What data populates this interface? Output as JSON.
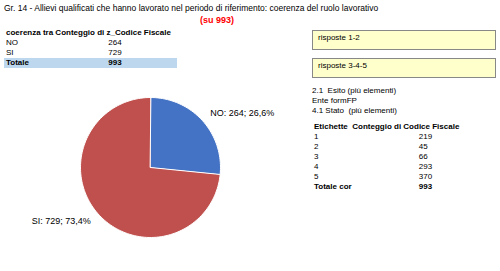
{
  "chart_data": {
    "type": "pie",
    "title": "Gr. 14 - Allievi qualificati che hanno lavorato nel periodo di riferimento: coerenza del ruolo lavorativo",
    "subtitle": "(su 993)",
    "categories": [
      "NO",
      "SI"
    ],
    "values": [
      264,
      729
    ],
    "value_labels": [
      "NO: 264; 26,6%",
      "SI: 729; 73,4%"
    ],
    "colors": [
      "#4472C4",
      "#C0504D"
    ],
    "data_labels": true,
    "tables": [
      {
        "header": "coerenza tra Conteggio di z_Codice Fiscale",
        "rows": [
          [
            "NO",
            "264"
          ],
          [
            "SI",
            "729"
          ],
          [
            "Totale",
            "993"
          ]
        ]
      },
      {
        "header": "Etichette  Conteggio di Codice Fiscale",
        "rows": [
          [
            "1",
            "219"
          ],
          [
            "2",
            "45"
          ],
          [
            "3",
            "66"
          ],
          [
            "4",
            "293"
          ],
          [
            "5",
            "370"
          ],
          [
            "Totale cor",
            "993"
          ]
        ]
      }
    ],
    "annotations": [
      "risposte 1-2",
      "risposte 3-4-5"
    ],
    "notes": [
      "2.1  Esito (più elementi)",
      "Ente formFP",
      "4.1 Stato  (più elementi)"
    ]
  }
}
